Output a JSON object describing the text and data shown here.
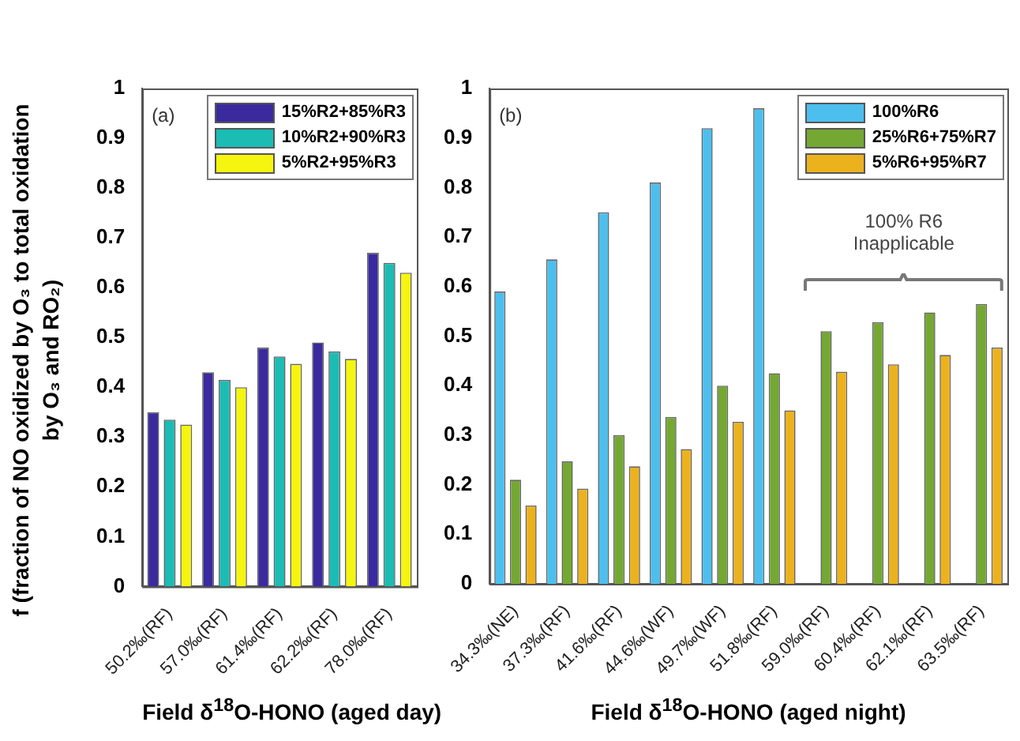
{
  "chart_data": [
    {
      "type": "bar",
      "xlabel": "Field δ$^{18}$O-HONO (aged day)",
      "ylabel": "f (fraction of NO oxidized by O₃ to total oxidation by O₃ and RO₂)",
      "categories": [
        "50.2‰(RF)",
        "57.0‰(RF)",
        "61.4‰(RF)",
        "62.2‰(RF)",
        "78.0‰(RF)"
      ],
      "series": [
        {
          "name": "15%R2+85%R3",
          "color": "#3a2a9e",
          "values": [
            0.35,
            0.43,
            0.48,
            0.49,
            0.67
          ]
        },
        {
          "name": "10%R2+90%R3",
          "color": "#1bbcb4",
          "values": [
            0.335,
            0.415,
            0.462,
            0.472,
            0.65
          ]
        },
        {
          "name": "5%R2+95%R3",
          "color": "#f5f50f",
          "values": [
            0.325,
            0.4,
            0.447,
            0.457,
            0.63
          ]
        }
      ],
      "ylim": [
        0,
        1
      ],
      "yticks": [
        0,
        0.1,
        0.2,
        0.3,
        0.4,
        0.5,
        0.6,
        0.7,
        0.8,
        0.9,
        1
      ],
      "grid": false,
      "legend": "top right",
      "annotations": [
        "(a)"
      ]
    },
    {
      "type": "bar",
      "xlabel": "Field δ$^{18}$O-HONO (aged night)",
      "categories": [
        "34.3‰(NE)",
        "37.3‰(RF)",
        "41.6‰(RF)",
        "44.6‰(WF)",
        "49.7‰(WF)",
        "51.8‰(RF)",
        "59.0‰(RF)",
        "60.4‰(RF)",
        "62.1‰(RF)",
        "63.5‰(RF)"
      ],
      "series": [
        {
          "name": "100%R6",
          "color": "#4dbfee",
          "values": [
            0.59,
            0.655,
            0.75,
            0.81,
            0.92,
            0.96,
            0,
            0,
            0,
            0
          ]
        },
        {
          "name": "25%R6+75%R7",
          "color": "#74a832",
          "values": [
            0.21,
            0.247,
            0.3,
            0.337,
            0.4,
            0.425,
            0.51,
            0.528,
            0.548,
            0.565
          ]
        },
        {
          "name": "5%R6+95%R7",
          "color": "#ecb21e",
          "values": [
            0.158,
            0.192,
            0.237,
            0.272,
            0.327,
            0.35,
            0.428,
            0.443,
            0.462,
            0.477
          ]
        }
      ],
      "ylim": [
        0,
        1
      ],
      "yticks": [
        0,
        0.1,
        0.2,
        0.3,
        0.4,
        0.5,
        0.6,
        0.7,
        0.8,
        0.9,
        1
      ],
      "grid": false,
      "legend": "top right",
      "annotations": [
        "(b)",
        "100% R6 Inapplicable"
      ]
    }
  ]
}
